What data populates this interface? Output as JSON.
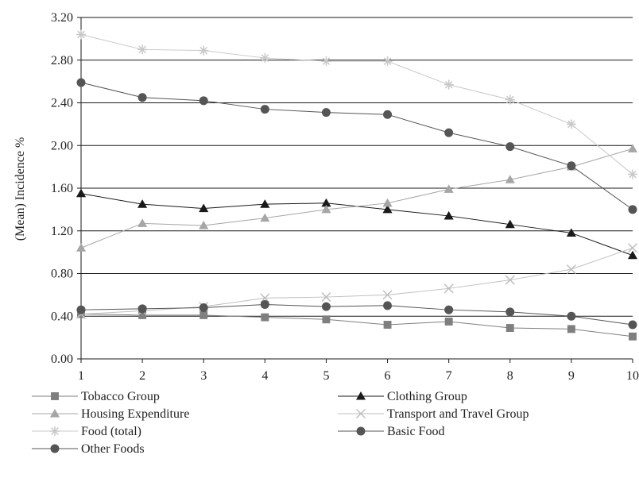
{
  "chart_data": {
    "type": "line",
    "title": "",
    "xlabel": "",
    "ylabel": "(Mean) Incidence %",
    "x": [
      1,
      2,
      3,
      4,
      5,
      6,
      7,
      8,
      9,
      10
    ],
    "xlim": [
      1,
      10
    ],
    "ylim": [
      0,
      3.2
    ],
    "yticks": [
      "0.00",
      "0.40",
      "0.80",
      "1.20",
      "1.60",
      "2.00",
      "2.40",
      "2.80",
      "3.20"
    ],
    "grid": "horizontal",
    "legend_position": "bottom",
    "series": [
      {
        "name": "Tobacco Group",
        "marker": "square",
        "color": "#7f7f7f",
        "values": [
          0.42,
          0.41,
          0.41,
          0.39,
          0.37,
          0.32,
          0.35,
          0.29,
          0.28,
          0.21
        ]
      },
      {
        "name": "Clothing Group",
        "marker": "triangle",
        "color": "#1a1a1a",
        "values": [
          1.55,
          1.45,
          1.41,
          1.45,
          1.46,
          1.4,
          1.34,
          1.26,
          1.18,
          0.97
        ]
      },
      {
        "name": "Housing Expenditure",
        "marker": "triangle",
        "color": "#a6a6a6",
        "values": [
          1.04,
          1.27,
          1.25,
          1.32,
          1.4,
          1.46,
          1.59,
          1.68,
          1.8,
          1.97
        ]
      },
      {
        "name": "Transport and Travel Group",
        "marker": "x",
        "color": "#bfbfbf",
        "values": [
          0.42,
          0.45,
          0.49,
          0.57,
          0.58,
          0.6,
          0.66,
          0.74,
          0.84,
          1.04
        ]
      },
      {
        "name": "Food (total)",
        "marker": "asterisk",
        "color": "#c8c8c8",
        "values": [
          3.04,
          2.9,
          2.89,
          2.82,
          2.79,
          2.79,
          2.57,
          2.43,
          2.2,
          1.73
        ]
      },
      {
        "name": "Basic Food",
        "marker": "circle",
        "color": "#555555",
        "values": [
          2.59,
          2.45,
          2.42,
          2.34,
          2.31,
          2.29,
          2.12,
          1.99,
          1.81,
          1.4
        ]
      },
      {
        "name": "Other Foods",
        "marker": "circle",
        "color": "#555555",
        "values": [
          0.46,
          0.47,
          0.48,
          0.51,
          0.49,
          0.5,
          0.46,
          0.44,
          0.4,
          0.32
        ]
      }
    ]
  }
}
